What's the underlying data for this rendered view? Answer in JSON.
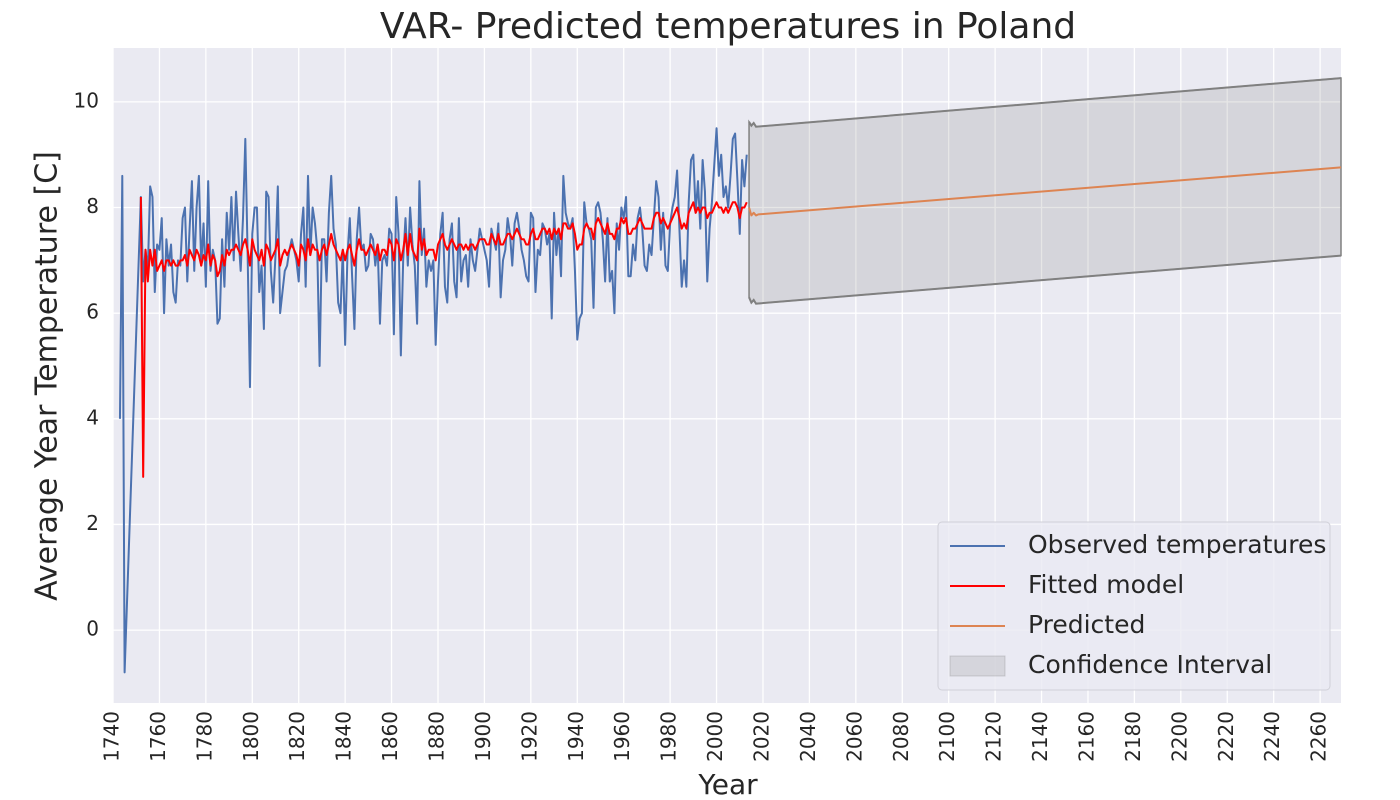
{
  "chart_data": {
    "type": "line",
    "title": "VAR- Predicted temperatures in Poland",
    "x_label": "Year",
    "y_label": "Average Year Temperature [C]",
    "xlim": [
      1740,
      2269
    ],
    "ylim": [
      -1.38,
      11.02
    ],
    "xticks": [
      1740,
      1760,
      1780,
      1800,
      1820,
      1840,
      1860,
      1880,
      1900,
      1920,
      1940,
      1960,
      1980,
      2000,
      2020,
      2040,
      2060,
      2080,
      2100,
      2120,
      2140,
      2160,
      2180,
      2200,
      2220,
      2240,
      2260
    ],
    "yticks": [
      0,
      2,
      4,
      6,
      8,
      10
    ],
    "grid": true,
    "background": "#eaeaf2",
    "legend_location": "lower right",
    "series": [
      {
        "name": "Observed temperatures",
        "color": "#4c72b0",
        "x": [
          1743,
          1744,
          1745,
          1752,
          1753,
          1754,
          1755,
          1756,
          1757,
          1758,
          1759,
          1760,
          1761,
          1762,
          1763,
          1764,
          1765,
          1766,
          1767,
          1768,
          1769,
          1770,
          1771,
          1772,
          1773,
          1774,
          1775,
          1776,
          1777,
          1778,
          1779,
          1780,
          1781,
          1782,
          1783,
          1784,
          1785,
          1786,
          1787,
          1788,
          1789,
          1790,
          1791,
          1792,
          1793,
          1794,
          1795,
          1796,
          1797,
          1798,
          1799,
          1800,
          1801,
          1802,
          1803,
          1804,
          1805,
          1806,
          1807,
          1808,
          1809,
          1810,
          1811,
          1812,
          1813,
          1814,
          1815,
          1816,
          1817,
          1818,
          1819,
          1820,
          1821,
          1822,
          1823,
          1824,
          1825,
          1826,
          1827,
          1828,
          1829,
          1830,
          1831,
          1832,
          1833,
          1834,
          1835,
          1836,
          1837,
          1838,
          1839,
          1840,
          1841,
          1842,
          1843,
          1844,
          1845,
          1846,
          1847,
          1848,
          1849,
          1850,
          1851,
          1852,
          1853,
          1854,
          1855,
          1856,
          1857,
          1858,
          1859,
          1860,
          1861,
          1862,
          1863,
          1864,
          1865,
          1866,
          1867,
          1868,
          1869,
          1870,
          1871,
          1872,
          1873,
          1874,
          1875,
          1876,
          1877,
          1878,
          1879,
          1880,
          1881,
          1882,
          1883,
          1884,
          1885,
          1886,
          1887,
          1888,
          1889,
          1890,
          1891,
          1892,
          1893,
          1894,
          1895,
          1896,
          1897,
          1898,
          1899,
          1900,
          1901,
          1902,
          1903,
          1904,
          1905,
          1906,
          1907,
          1908,
          1909,
          1910,
          1911,
          1912,
          1913,
          1914,
          1915,
          1916,
          1917,
          1918,
          1919,
          1920,
          1921,
          1922,
          1923,
          1924,
          1925,
          1926,
          1927,
          1928,
          1929,
          1930,
          1931,
          1932,
          1933,
          1934,
          1935,
          1936,
          1937,
          1938,
          1939,
          1940,
          1941,
          1942,
          1943,
          1944,
          1945,
          1946,
          1947,
          1948,
          1949,
          1950,
          1951,
          1952,
          1953,
          1954,
          1955,
          1956,
          1957,
          1958,
          1959,
          1960,
          1961,
          1962,
          1963,
          1964,
          1965,
          1966,
          1967,
          1968,
          1969,
          1970,
          1971,
          1972,
          1973,
          1974,
          1975,
          1976,
          1977,
          1978,
          1979,
          1980,
          1981,
          1982,
          1983,
          1984,
          1985,
          1986,
          1987,
          1988,
          1989,
          1990,
          1991,
          1992,
          1993,
          1994,
          1995,
          1996,
          1997,
          1998,
          1999,
          2000,
          2001,
          2002,
          2003,
          2004,
          2005,
          2006,
          2007,
          2008,
          2009,
          2010,
          2011,
          2012,
          2013
        ],
        "values": [
          4.0,
          8.6,
          -0.8,
          8.2,
          6.6,
          7.2,
          6.8,
          8.4,
          8.2,
          6.4,
          7.3,
          7.2,
          7.8,
          6.0,
          7.4,
          6.9,
          7.3,
          6.4,
          6.2,
          7.0,
          6.9,
          7.8,
          8.0,
          6.6,
          7.6,
          8.5,
          6.8,
          8.0,
          8.6,
          6.9,
          7.7,
          6.5,
          8.5,
          6.8,
          7.2,
          7.0,
          5.8,
          5.9,
          7.4,
          6.5,
          7.9,
          7.2,
          8.2,
          7.0,
          8.3,
          7.5,
          6.8,
          7.8,
          9.3,
          7.1,
          4.6,
          7.5,
          8.0,
          8.0,
          6.4,
          6.9,
          5.7,
          8.3,
          8.2,
          6.8,
          6.2,
          7.1,
          8.4,
          6.0,
          6.4,
          6.8,
          6.9,
          7.2,
          7.4,
          7.2,
          7.0,
          6.6,
          7.5,
          8.0,
          6.5,
          8.6,
          7.1,
          8.0,
          7.7,
          7.2,
          5.0,
          7.4,
          7.4,
          6.6,
          7.9,
          8.6,
          7.6,
          7.3,
          6.2,
          6.0,
          7.2,
          5.4,
          7.1,
          7.8,
          6.7,
          5.7,
          7.4,
          8.0,
          7.2,
          7.3,
          6.8,
          6.9,
          7.5,
          7.4,
          6.9,
          7.3,
          5.8,
          7.0,
          7.1,
          6.9,
          7.6,
          7.5,
          5.6,
          8.2,
          7.5,
          5.2,
          7.0,
          7.8,
          6.9,
          8.0,
          7.3,
          6.9,
          5.8,
          8.5,
          7.1,
          7.6,
          6.5,
          7.0,
          6.8,
          7.0,
          5.4,
          6.6,
          7.5,
          7.9,
          6.5,
          6.2,
          7.4,
          7.7,
          6.6,
          6.3,
          7.8,
          6.6,
          7.0,
          7.1,
          6.5,
          7.4,
          7.0,
          6.8,
          7.2,
          7.6,
          7.4,
          7.2,
          7.0,
          6.5,
          7.6,
          7.4,
          7.2,
          7.7,
          6.3,
          7.0,
          7.2,
          7.8,
          7.5,
          6.9,
          7.7,
          7.9,
          7.6,
          7.2,
          7.0,
          6.7,
          6.6,
          7.9,
          7.8,
          6.4,
          7.2,
          7.1,
          7.7,
          7.6,
          7.3,
          7.5,
          5.9,
          7.9,
          7.1,
          7.6,
          6.7,
          8.6,
          7.9,
          7.7,
          7.6,
          7.8,
          6.8,
          5.5,
          5.9,
          6.0,
          8.1,
          7.7,
          7.6,
          7.4,
          6.1,
          8.0,
          8.1,
          7.9,
          7.4,
          6.6,
          7.8,
          6.6,
          6.8,
          6.0,
          7.7,
          7.2,
          8.0,
          7.8,
          8.2,
          6.7,
          6.7,
          7.3,
          7.0,
          7.8,
          8.0,
          7.6,
          6.9,
          6.8,
          7.3,
          7.1,
          7.8,
          8.5,
          8.2,
          7.2,
          7.9,
          6.9,
          6.8,
          7.7,
          8.0,
          8.2,
          8.7,
          7.6,
          6.5,
          7.0,
          6.5,
          8.1,
          8.9,
          9.0,
          7.9,
          8.5,
          7.6,
          8.9,
          8.3,
          6.6,
          7.6,
          8.1,
          8.8,
          9.5,
          8.6,
          9.0,
          8.2,
          8.4,
          8.0,
          8.6,
          9.3,
          9.4,
          8.5,
          7.5,
          8.9,
          8.4,
          9.0
        ]
      },
      {
        "name": "Fitted model",
        "color": "#ff0000",
        "x": [
          1752,
          1753,
          1754,
          1755,
          1756,
          1757,
          1758,
          1759,
          1760,
          1761,
          1762,
          1763,
          1764,
          1765,
          1766,
          1767,
          1768,
          1769,
          1770,
          1771,
          1772,
          1773,
          1774,
          1775,
          1776,
          1777,
          1778,
          1779,
          1780,
          1781,
          1782,
          1783,
          1784,
          1785,
          1786,
          1787,
          1788,
          1789,
          1790,
          1791,
          1792,
          1793,
          1794,
          1795,
          1796,
          1797,
          1798,
          1799,
          1800,
          1801,
          1802,
          1803,
          1804,
          1805,
          1806,
          1807,
          1808,
          1809,
          1810,
          1811,
          1812,
          1813,
          1814,
          1815,
          1816,
          1817,
          1818,
          1819,
          1820,
          1821,
          1822,
          1823,
          1824,
          1825,
          1826,
          1827,
          1828,
          1829,
          1830,
          1831,
          1832,
          1833,
          1834,
          1835,
          1836,
          1837,
          1838,
          1839,
          1840,
          1841,
          1842,
          1843,
          1844,
          1845,
          1846,
          1847,
          1848,
          1849,
          1850,
          1851,
          1852,
          1853,
          1854,
          1855,
          1856,
          1857,
          1858,
          1859,
          1860,
          1861,
          1862,
          1863,
          1864,
          1865,
          1866,
          1867,
          1868,
          1869,
          1870,
          1871,
          1872,
          1873,
          1874,
          1875,
          1876,
          1877,
          1878,
          1879,
          1880,
          1881,
          1882,
          1883,
          1884,
          1885,
          1886,
          1887,
          1888,
          1889,
          1890,
          1891,
          1892,
          1893,
          1894,
          1895,
          1896,
          1897,
          1898,
          1899,
          1900,
          1901,
          1902,
          1903,
          1904,
          1905,
          1906,
          1907,
          1908,
          1909,
          1910,
          1911,
          1912,
          1913,
          1914,
          1915,
          1916,
          1917,
          1918,
          1919,
          1920,
          1921,
          1922,
          1923,
          1924,
          1925,
          1926,
          1927,
          1928,
          1929,
          1930,
          1931,
          1932,
          1933,
          1934,
          1935,
          1936,
          1937,
          1938,
          1939,
          1940,
          1941,
          1942,
          1943,
          1944,
          1945,
          1946,
          1947,
          1948,
          1949,
          1950,
          1951,
          1952,
          1953,
          1954,
          1955,
          1956,
          1957,
          1958,
          1959,
          1960,
          1961,
          1962,
          1963,
          1964,
          1965,
          1966,
          1967,
          1968,
          1969,
          1970,
          1971,
          1972,
          1973,
          1974,
          1975,
          1976,
          1977,
          1978,
          1979,
          1980,
          1981,
          1982,
          1983,
          1984,
          1985,
          1986,
          1987,
          1988,
          1989,
          1990,
          1991,
          1992,
          1993,
          1994,
          1995,
          1996,
          1997,
          1998,
          1999,
          2000,
          2001,
          2002,
          2003,
          2004,
          2005,
          2006,
          2007,
          2008,
          2009,
          2010,
          2011,
          2012,
          2013
        ],
        "values": [
          8.2,
          2.9,
          7.2,
          6.6,
          7.2,
          6.9,
          7.2,
          6.8,
          6.9,
          7.0,
          6.8,
          7.0,
          7.0,
          6.9,
          7.0,
          6.9,
          6.9,
          7.0,
          7.0,
          7.1,
          6.9,
          7.2,
          7.1,
          7.0,
          7.2,
          7.1,
          6.9,
          7.1,
          7.0,
          7.3,
          6.9,
          7.1,
          7.0,
          6.7,
          6.8,
          7.1,
          6.9,
          7.2,
          7.1,
          7.2,
          7.2,
          7.3,
          7.2,
          7.1,
          7.3,
          7.4,
          7.2,
          6.9,
          7.4,
          7.2,
          7.1,
          7.0,
          7.2,
          6.9,
          7.3,
          7.2,
          7.0,
          7.1,
          7.2,
          7.4,
          6.9,
          7.1,
          7.2,
          7.1,
          7.2,
          7.3,
          7.2,
          7.1,
          6.9,
          7.3,
          7.2,
          7.0,
          7.4,
          7.1,
          7.3,
          7.2,
          7.2,
          7.0,
          7.2,
          7.3,
          7.1,
          7.3,
          7.5,
          7.3,
          7.2,
          7.1,
          7.0,
          7.2,
          7.0,
          7.2,
          7.3,
          7.1,
          6.9,
          7.2,
          7.4,
          7.2,
          7.2,
          7.1,
          7.2,
          7.3,
          7.2,
          7.1,
          7.3,
          7.0,
          7.2,
          7.2,
          7.1,
          7.4,
          7.3,
          7.0,
          7.4,
          7.3,
          7.0,
          7.2,
          7.5,
          7.1,
          7.5,
          7.2,
          7.1,
          7.0,
          7.6,
          7.2,
          7.4,
          7.1,
          7.2,
          7.2,
          7.2,
          7.0,
          7.3,
          7.4,
          7.5,
          7.3,
          7.2,
          7.3,
          7.4,
          7.3,
          7.2,
          7.3,
          7.3,
          7.2,
          7.3,
          7.2,
          7.3,
          7.3,
          7.2,
          7.3,
          7.4,
          7.4,
          7.4,
          7.3,
          7.3,
          7.5,
          7.4,
          7.3,
          7.5,
          7.3,
          7.3,
          7.4,
          7.5,
          7.5,
          7.4,
          7.5,
          7.6,
          7.5,
          7.4,
          7.4,
          7.3,
          7.3,
          7.5,
          7.6,
          7.4,
          7.4,
          7.5,
          7.6,
          7.6,
          7.5,
          7.6,
          7.4,
          7.6,
          7.5,
          7.6,
          7.4,
          7.7,
          7.7,
          7.6,
          7.6,
          7.7,
          7.5,
          7.2,
          7.3,
          7.3,
          7.6,
          7.7,
          7.6,
          7.6,
          7.4,
          7.7,
          7.8,
          7.7,
          7.6,
          7.5,
          7.7,
          7.5,
          7.5,
          7.4,
          7.6,
          7.6,
          7.8,
          7.7,
          7.8,
          7.5,
          7.5,
          7.6,
          7.6,
          7.7,
          7.8,
          7.7,
          7.6,
          7.6,
          7.6,
          7.6,
          7.8,
          7.9,
          7.9,
          7.7,
          7.8,
          7.7,
          7.6,
          7.7,
          7.8,
          7.9,
          8.0,
          7.8,
          7.6,
          7.7,
          7.6,
          7.9,
          8.0,
          8.1,
          7.9,
          8.0,
          7.9,
          8.0,
          8.0,
          7.8,
          7.9,
          7.9,
          8.0,
          8.1,
          8.0,
          8.0,
          7.9,
          8.0,
          7.9,
          8.0,
          8.1,
          8.1,
          8.0,
          7.8,
          8.0,
          8.0,
          8.1
        ]
      },
      {
        "name": "Predicted",
        "color": "#dd8452",
        "x": [
          2014,
          2015,
          2016,
          2017,
          2018,
          2269
        ],
        "values": [
          8.0,
          7.85,
          7.9,
          7.85,
          7.87,
          8.76
        ]
      }
    ],
    "confidence_interval": {
      "name": "Confidence Interval",
      "color": "#808080",
      "x": [
        2014,
        2015,
        2016,
        2017,
        2269
      ],
      "lower": [
        6.3,
        6.2,
        6.25,
        6.18,
        7.09
      ],
      "upper": [
        9.62,
        9.55,
        9.6,
        9.53,
        10.45
      ]
    }
  }
}
